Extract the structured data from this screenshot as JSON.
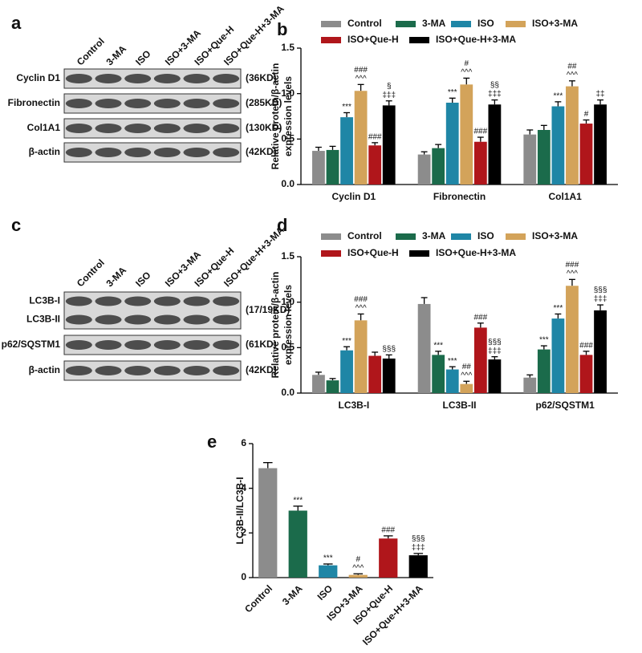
{
  "blots": [
    {
      "panel": "a",
      "lanes": [
        "Control",
        "3-MA",
        "ISO",
        "ISO+3-MA",
        "ISO+Que-H",
        "ISO+Que-H+3-MA"
      ],
      "rows": [
        {
          "labels": [
            "Cyclin D1"
          ],
          "size": "(36KD)"
        },
        {
          "labels": [
            "Fibronectin"
          ],
          "size": "(285KD)"
        },
        {
          "labels": [
            "Col1A1"
          ],
          "size": "(130KD)"
        },
        {
          "labels": [
            "β-actin"
          ],
          "size": "(42KD)"
        }
      ]
    },
    {
      "panel": "c",
      "lanes": [
        "Control",
        "3-MA",
        "ISO",
        "ISO+3-MA",
        "ISO+Que-H",
        "ISO+Que-H+3-MA"
      ],
      "rows": [
        {
          "labels": [
            "LC3B-I",
            "LC3B-II"
          ],
          "size": "(17/19KD)"
        },
        {
          "labels": [
            "p62/SQSTM1"
          ],
          "size": "(61KD)"
        },
        {
          "labels": [
            "β-actin"
          ],
          "size": "(42KD)"
        }
      ]
    }
  ],
  "chart_data": [
    {
      "type": "bar",
      "panel": "b",
      "ylabel": [
        "Relative protein/β-actin",
        "expression levels"
      ],
      "categories": [
        "Cyclin D1",
        "Fibronectin",
        "Col1A1"
      ],
      "ylim": [
        0,
        1.5
      ],
      "yticks": [
        {
          "value": 0,
          "label": "0.0"
        },
        0.5,
        {
          "value": 1,
          "label": "1.0"
        },
        1.5
      ],
      "series": [
        {
          "name": "Control",
          "color": "#8c8c8c",
          "values": [
            0.37,
            0.33,
            0.55
          ],
          "errors": [
            0.04,
            0.03,
            0.05
          ],
          "annotations": [
            null,
            null,
            null
          ]
        },
        {
          "name": "3-MA",
          "color": "#1b6b4b",
          "values": [
            0.38,
            0.4,
            0.6
          ],
          "errors": [
            0.04,
            0.04,
            0.05
          ],
          "annotations": [
            null,
            null,
            null
          ]
        },
        {
          "name": "ISO",
          "color": "#1f86a6",
          "values": [
            0.74,
            0.9,
            0.86
          ],
          "errors": [
            0.05,
            0.05,
            0.05
          ],
          "annotations": [
            [
              "***"
            ],
            [
              "***"
            ],
            [
              "***"
            ]
          ]
        },
        {
          "name": "ISO+3-MA",
          "color": "#d3a35a",
          "values": [
            1.03,
            1.1,
            1.08
          ],
          "errors": [
            0.07,
            0.07,
            0.06
          ],
          "annotations": [
            [
              "###",
              "^^^"
            ],
            [
              "#",
              "^^^"
            ],
            [
              "##",
              "^^^"
            ]
          ]
        },
        {
          "name": "ISO+Que-H",
          "color": "#b0161b",
          "values": [
            0.43,
            0.47,
            0.67
          ],
          "errors": [
            0.03,
            0.05,
            0.04
          ],
          "annotations": [
            [
              "###"
            ],
            [
              "###"
            ],
            [
              "#"
            ]
          ]
        },
        {
          "name": "ISO+Que-H+3-MA",
          "color": "#000000",
          "values": [
            0.87,
            0.88,
            0.88
          ],
          "errors": [
            0.05,
            0.05,
            0.05
          ],
          "annotations": [
            [
              "§",
              "‡‡‡"
            ],
            [
              "§§",
              "‡‡‡"
            ],
            [
              "‡‡"
            ]
          ]
        }
      ]
    },
    {
      "type": "bar",
      "panel": "d",
      "ylabel": [
        "Relative protein/β-actin",
        "expression levels"
      ],
      "categories": [
        "LC3B-I",
        "LC3B-II",
        "p62/SQSTM1"
      ],
      "ylim": [
        0,
        1.5
      ],
      "yticks": [
        {
          "value": 0,
          "label": "0.0"
        },
        0.5,
        {
          "value": 1,
          "label": "1.0"
        },
        1.5
      ],
      "series": [
        {
          "name": "Control",
          "color": "#8c8c8c",
          "values": [
            0.2,
            0.98,
            0.17
          ],
          "errors": [
            0.03,
            0.07,
            0.03
          ],
          "annotations": [
            null,
            null,
            null
          ]
        },
        {
          "name": "3-MA",
          "color": "#1b6b4b",
          "values": [
            0.14,
            0.42,
            0.48
          ],
          "errors": [
            0.02,
            0.04,
            0.04
          ],
          "annotations": [
            null,
            [
              "***"
            ],
            [
              "***"
            ]
          ]
        },
        {
          "name": "ISO",
          "color": "#1f86a6",
          "values": [
            0.47,
            0.26,
            0.82
          ],
          "errors": [
            0.04,
            0.03,
            0.05
          ],
          "annotations": [
            [
              "***"
            ],
            [
              "***"
            ],
            [
              "***"
            ]
          ]
        },
        {
          "name": "ISO+3-MA",
          "color": "#d3a35a",
          "values": [
            0.8,
            0.1,
            1.18
          ],
          "errors": [
            0.07,
            0.03,
            0.07
          ],
          "annotations": [
            [
              "###",
              "^^^"
            ],
            [
              "##",
              "^^^"
            ],
            [
              "###",
              "^^^"
            ]
          ]
        },
        {
          "name": "ISO+Que-H",
          "color": "#b0161b",
          "values": [
            0.41,
            0.72,
            0.42
          ],
          "errors": [
            0.04,
            0.05,
            0.04
          ],
          "annotations": [
            null,
            [
              "###"
            ],
            [
              "###"
            ]
          ]
        },
        {
          "name": "ISO+Que-H+3-MA",
          "color": "#000000",
          "values": [
            0.38,
            0.37,
            0.91
          ],
          "errors": [
            0.04,
            0.03,
            0.06
          ],
          "annotations": [
            [
              "§§§"
            ],
            [
              "§§§",
              "‡‡‡"
            ],
            [
              "§§§",
              "‡‡‡"
            ]
          ]
        }
      ]
    },
    {
      "type": "bar",
      "panel": "e",
      "ylabel": "LC3B-II/LC3B-I",
      "categories": [
        "Control",
        "3-MA",
        "ISO",
        "ISO+3-MA",
        "ISO+Que-H",
        "ISO+Que-H+3-MA"
      ],
      "ylim": [
        0,
        6
      ],
      "yticks": [
        0,
        2,
        4,
        6
      ],
      "values": [
        4.9,
        3.0,
        0.55,
        0.12,
        1.75,
        1.0
      ],
      "errors": [
        0.25,
        0.2,
        0.06,
        0.05,
        0.12,
        0.08
      ],
      "colors": [
        "#8c8c8c",
        "#1b6b4b",
        "#1f86a6",
        "#d3a35a",
        "#b0161b",
        "#000000"
      ],
      "annotations": [
        null,
        [
          "***"
        ],
        [
          "***"
        ],
        [
          "#",
          "^^^"
        ],
        [
          "###"
        ],
        [
          "§§§",
          "‡‡‡"
        ]
      ]
    }
  ]
}
